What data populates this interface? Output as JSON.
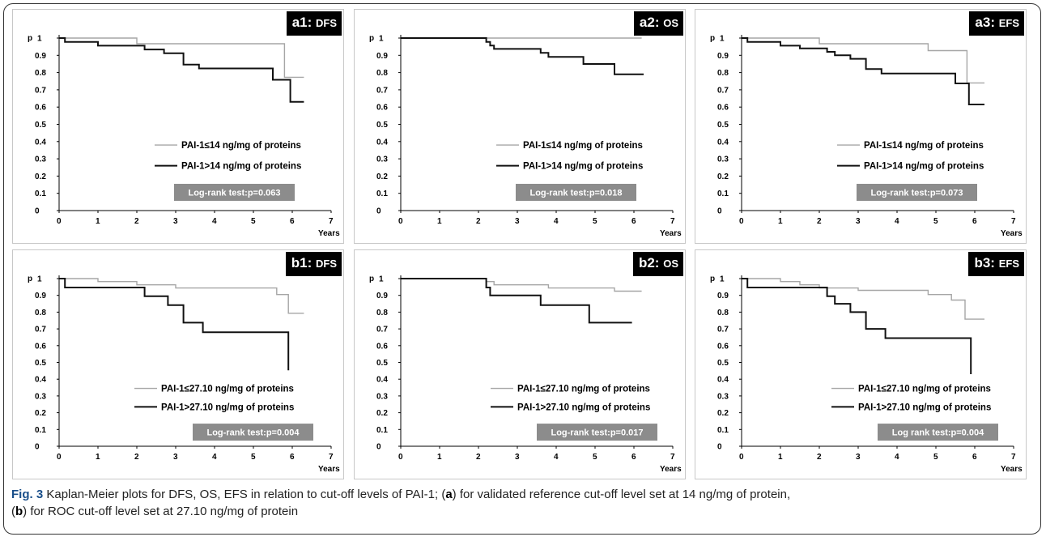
{
  "figure": {
    "caption_label": "Fig. 3",
    "caption_part1": "Kaplan-Meier plots for DFS, OS, EFS in relation to cut-off levels of PAI-1; (",
    "caption_a": "a",
    "caption_part2": ") for validated reference cut-off level set at 14 ng/mg of protein,",
    "caption_part3": "(",
    "caption_b": "b",
    "caption_part4": ") for ROC cut-off level set at 27.10 ng/mg of protein"
  },
  "colors": {
    "low": "#a6a6a6",
    "high": "#111111",
    "box": "#8c8c8c",
    "label_bg": "#000000"
  },
  "chart_data": [
    {
      "type": "line",
      "panel": "a1",
      "label_id": "a1:",
      "label_name": "DFS",
      "ylabel": "p",
      "xlabel": "Years",
      "xlim": [
        0,
        7
      ],
      "ylim": [
        0,
        1
      ],
      "xticks": [
        "0",
        "1",
        "2",
        "3",
        "4",
        "5",
        "6",
        "7"
      ],
      "yticks": [
        "0",
        "0.1",
        "0.2",
        "0.3",
        "0.4",
        "0.5",
        "0.6",
        "0.7",
        "0.8",
        "0.9",
        "1"
      ],
      "series": [
        {
          "name": "PAI-1≤14 ng/mg of proteins",
          "color": "low",
          "x": [
            0,
            2,
            2,
            5.8,
            5.8,
            6.3
          ],
          "y": [
            1,
            1,
            0.967,
            0.967,
            0.773,
            0.773
          ]
        },
        {
          "name": "PAI-1>14 ng/mg of proteins",
          "color": "high",
          "x": [
            0,
            0.15,
            0.15,
            1,
            1,
            2.2,
            2.2,
            2.7,
            2.7,
            3.2,
            3.2,
            3.6,
            3.6,
            5.5,
            5.5,
            5.95,
            5.95,
            6.3
          ],
          "y": [
            1,
            1,
            0.978,
            0.978,
            0.956,
            0.956,
            0.934,
            0.934,
            0.912,
            0.912,
            0.846,
            0.846,
            0.824,
            0.824,
            0.758,
            0.758,
            0.63,
            0.63
          ]
        }
      ],
      "annotation": "Log-rank test:p=0.063"
    },
    {
      "type": "line",
      "panel": "a2",
      "label_id": "a2:",
      "label_name": "OS",
      "ylabel": "p",
      "xlabel": "Years",
      "xlim": [
        0,
        7
      ],
      "ylim": [
        0,
        1
      ],
      "xticks": [
        "0",
        "1",
        "2",
        "3",
        "4",
        "5",
        "6",
        "7"
      ],
      "yticks": [
        "0",
        "0.1",
        "0.2",
        "0.3",
        "0.4",
        "0.5",
        "0.6",
        "0.7",
        "0.8",
        "0.9",
        "1"
      ],
      "series": [
        {
          "name": "PAI-1≤14 ng/mg of proteins",
          "color": "low",
          "x": [
            0,
            6.2
          ],
          "y": [
            1,
            1
          ]
        },
        {
          "name": "PAI-1>14 ng/mg of proteins",
          "color": "high",
          "x": [
            0,
            2.2,
            2.2,
            2.3,
            2.3,
            2.4,
            2.4,
            3.6,
            3.6,
            3.8,
            3.8,
            4.7,
            4.7,
            5.5,
            5.5,
            6.25
          ],
          "y": [
            1,
            1,
            0.978,
            0.978,
            0.957,
            0.957,
            0.937,
            0.937,
            0.914,
            0.914,
            0.891,
            0.891,
            0.85,
            0.85,
            0.79,
            0.79
          ]
        }
      ],
      "annotation": "Log-rank test:p=0.018"
    },
    {
      "type": "line",
      "panel": "a3",
      "label_id": "a3:",
      "label_name": "EFS",
      "ylabel": "p",
      "xlabel": "Years",
      "xlim": [
        0,
        7
      ],
      "ylim": [
        0,
        1
      ],
      "xticks": [
        "0",
        "1",
        "2",
        "3",
        "4",
        "5",
        "6",
        "7"
      ],
      "yticks": [
        "0",
        "0.1",
        "0.2",
        "0.3",
        "0.4",
        "0.5",
        "0.6",
        "0.7",
        "0.8",
        "0.9",
        "1"
      ],
      "series": [
        {
          "name": "PAI-1≤14 ng/mg of proteins",
          "color": "low",
          "x": [
            0,
            2,
            2,
            4.8,
            4.8,
            5.8,
            5.8,
            6.25
          ],
          "y": [
            1,
            1,
            0.967,
            0.967,
            0.927,
            0.927,
            0.74,
            0.74
          ]
        },
        {
          "name": "PAI-1>14 ng/mg of proteins",
          "color": "high",
          "x": [
            0,
            0.15,
            0.15,
            1,
            1,
            1.5,
            1.5,
            2.2,
            2.2,
            2.4,
            2.4,
            2.8,
            2.8,
            3.2,
            3.2,
            3.6,
            3.6,
            5.5,
            5.5,
            5.85,
            5.85,
            6.25
          ],
          "y": [
            1,
            1,
            0.978,
            0.978,
            0.956,
            0.956,
            0.94,
            0.94,
            0.92,
            0.92,
            0.9,
            0.9,
            0.88,
            0.88,
            0.82,
            0.82,
            0.795,
            0.795,
            0.737,
            0.737,
            0.615,
            0.615
          ]
        }
      ],
      "annotation": "Log-rank test:p=0.073"
    },
    {
      "type": "line",
      "panel": "b1",
      "label_id": "b1:",
      "label_name": "DFS",
      "ylabel": "p",
      "xlabel": "Years",
      "xlim": [
        0,
        7
      ],
      "ylim": [
        0,
        1
      ],
      "xticks": [
        "0",
        "1",
        "2",
        "3",
        "4",
        "5",
        "6",
        "7"
      ],
      "yticks": [
        "0",
        "0.1",
        "0.2",
        "0.3",
        "0.4",
        "0.5",
        "0.6",
        "0.7",
        "0.8",
        "0.9",
        "1"
      ],
      "series": [
        {
          "name": "PAI-1≤27.10 ng/mg of proteins",
          "color": "low",
          "x": [
            0,
            1,
            1,
            2,
            2,
            3,
            3,
            5.6,
            5.6,
            5.9,
            5.9,
            6.3
          ],
          "y": [
            1,
            1,
            0.982,
            0.982,
            0.963,
            0.963,
            0.944,
            0.944,
            0.905,
            0.905,
            0.793,
            0.793
          ]
        },
        {
          "name": "PAI-1>27.10 ng/mg of proteins",
          "color": "high",
          "x": [
            0,
            0.15,
            0.15,
            2.2,
            2.2,
            2.8,
            2.8,
            3.2,
            3.2,
            3.7,
            3.7,
            5.9,
            5.9
          ],
          "y": [
            1,
            1,
            0.947,
            0.947,
            0.895,
            0.895,
            0.842,
            0.842,
            0.737,
            0.737,
            0.68,
            0.68,
            0.453
          ]
        }
      ],
      "annotation": "Log-rank test:p=0.004"
    },
    {
      "type": "line",
      "panel": "b2",
      "label_id": "b2:",
      "label_name": "OS",
      "ylabel": "p",
      "xlabel": "Years",
      "xlim": [
        0,
        7
      ],
      "ylim": [
        0,
        1
      ],
      "xticks": [
        "0",
        "1",
        "2",
        "3",
        "4",
        "5",
        "6",
        "7"
      ],
      "yticks": [
        "0",
        "0.1",
        "0.2",
        "0.3",
        "0.4",
        "0.5",
        "0.6",
        "0.7",
        "0.8",
        "0.9",
        "1"
      ],
      "series": [
        {
          "name": "PAI-1≤27.10 ng/mg of proteins",
          "color": "low",
          "x": [
            0,
            2.2,
            2.2,
            2.4,
            2.4,
            3.8,
            3.8,
            5.5,
            5.5,
            6.2
          ],
          "y": [
            1,
            1,
            0.982,
            0.982,
            0.963,
            0.963,
            0.944,
            0.944,
            0.925,
            0.925
          ]
        },
        {
          "name": "PAI-1>27.10 ng/mg of proteins",
          "color": "high",
          "x": [
            0,
            2.2,
            2.2,
            2.3,
            2.3,
            3.6,
            3.6,
            4.85,
            4.85,
            5.95
          ],
          "y": [
            1,
            1,
            0.947,
            0.947,
            0.9,
            0.9,
            0.842,
            0.842,
            0.737,
            0.737
          ]
        }
      ],
      "annotation": "Log-rank test:p=0.017"
    },
    {
      "type": "line",
      "panel": "b3",
      "label_id": "b3:",
      "label_name": "EFS",
      "ylabel": "p",
      "xlabel": "Years",
      "xlim": [
        0,
        7
      ],
      "ylim": [
        0,
        1
      ],
      "xticks": [
        "0",
        "1",
        "2",
        "3",
        "4",
        "5",
        "6",
        "7"
      ],
      "yticks": [
        "0",
        "0.1",
        "0.2",
        "0.3",
        "0.4",
        "0.5",
        "0.6",
        "0.7",
        "0.8",
        "0.9",
        "1"
      ],
      "series": [
        {
          "name": "PAI-1≤27.10 ng/mg of proteins",
          "color": "low",
          "x": [
            0,
            1,
            1,
            1.5,
            1.5,
            2,
            2,
            3,
            3,
            4.8,
            4.8,
            5.4,
            5.4,
            5.75,
            5.75,
            6.25
          ],
          "y": [
            1,
            1,
            0.982,
            0.982,
            0.963,
            0.963,
            0.944,
            0.944,
            0.93,
            0.93,
            0.905,
            0.905,
            0.872,
            0.872,
            0.758,
            0.758
          ]
        },
        {
          "name": "PAI-1>27.10 ng/mg of proteins",
          "color": "high",
          "x": [
            0,
            0.15,
            0.15,
            2.2,
            2.2,
            2.4,
            2.4,
            2.8,
            2.8,
            3.2,
            3.2,
            3.7,
            3.7,
            5.9,
            5.9
          ],
          "y": [
            1,
            1,
            0.947,
            0.947,
            0.895,
            0.895,
            0.85,
            0.85,
            0.8,
            0.8,
            0.7,
            0.7,
            0.645,
            0.645,
            0.43
          ]
        }
      ],
      "annotation": "Log rank test:p=0.004"
    }
  ]
}
